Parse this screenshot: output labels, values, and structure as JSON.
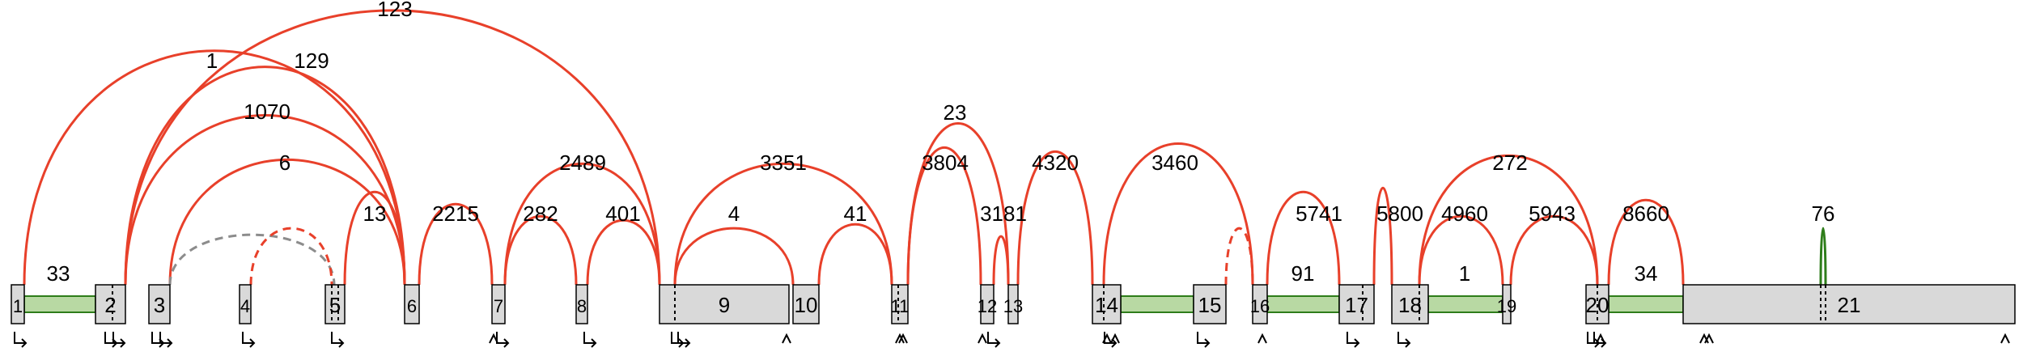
{
  "exons": [
    {
      "id": "1",
      "label": "1"
    },
    {
      "id": "2",
      "label": "2"
    },
    {
      "id": "3",
      "label": "3"
    },
    {
      "id": "4",
      "label": "4"
    },
    {
      "id": "5",
      "label": "5"
    },
    {
      "id": "6",
      "label": "6"
    },
    {
      "id": "7",
      "label": "7"
    },
    {
      "id": "8",
      "label": "8"
    },
    {
      "id": "9",
      "label": "9"
    },
    {
      "id": "10",
      "label": "10"
    },
    {
      "id": "11",
      "label": "11"
    },
    {
      "id": "12",
      "label": "12"
    },
    {
      "id": "13",
      "label": "13"
    },
    {
      "id": "14",
      "label": "14"
    },
    {
      "id": "15",
      "label": "15"
    },
    {
      "id": "16",
      "label": "16"
    },
    {
      "id": "17",
      "label": "17"
    },
    {
      "id": "18",
      "label": "18"
    },
    {
      "id": "19",
      "label": "19"
    },
    {
      "id": "20",
      "label": "20"
    },
    {
      "id": "21",
      "label": "21"
    }
  ],
  "junctions": [
    {
      "from": "1",
      "to": "6",
      "count": "1",
      "style": "solid"
    },
    {
      "from": "2",
      "to": "6",
      "count": "129",
      "style": "solid"
    },
    {
      "from": "2",
      "to": "9",
      "count": "123",
      "style": "solid"
    },
    {
      "from": "2",
      "to": "6",
      "count": "1070",
      "style": "solid"
    },
    {
      "from": "3",
      "to": "6",
      "count": "6",
      "style": "solid"
    },
    {
      "from": "3",
      "to": "5",
      "count": "",
      "style": "grey-dashed"
    },
    {
      "from": "4",
      "to": "5",
      "count": "",
      "style": "dashed"
    },
    {
      "from": "5",
      "to": "6",
      "count": "13",
      "style": "solid"
    },
    {
      "from": "6",
      "to": "7",
      "count": "2215",
      "style": "solid"
    },
    {
      "from": "7",
      "to": "8",
      "count": "282",
      "style": "solid"
    },
    {
      "from": "7",
      "to": "9",
      "count": "2489",
      "style": "solid"
    },
    {
      "from": "8",
      "to": "9",
      "count": "401",
      "style": "solid"
    },
    {
      "from": "9",
      "to": "10",
      "count": "4",
      "style": "solid"
    },
    {
      "from": "9",
      "to": "11",
      "count": "3351",
      "style": "solid"
    },
    {
      "from": "10",
      "to": "11",
      "count": "41",
      "style": "solid"
    },
    {
      "from": "11",
      "to": "13",
      "count": "23",
      "style": "solid"
    },
    {
      "from": "11",
      "to": "12",
      "count": "3804",
      "style": "solid"
    },
    {
      "from": "12",
      "to": "13",
      "count": "3181",
      "style": "solid"
    },
    {
      "from": "13",
      "to": "14",
      "count": "4320",
      "style": "solid"
    },
    {
      "from": "14",
      "to": "16",
      "count": "3460",
      "style": "solid"
    },
    {
      "from": "15",
      "to": "16",
      "count": "",
      "style": "dashed"
    },
    {
      "from": "16",
      "to": "17",
      "count": "5741",
      "style": "solid"
    },
    {
      "from": "17",
      "to": "18",
      "count": "5800",
      "style": "solid"
    },
    {
      "from": "18",
      "to": "19",
      "count": "4960",
      "style": "solid"
    },
    {
      "from": "18",
      "to": "20",
      "count": "272",
      "style": "solid"
    },
    {
      "from": "19",
      "to": "20",
      "count": "5943",
      "style": "solid"
    },
    {
      "from": "20",
      "to": "21",
      "count": "8660",
      "style": "solid"
    },
    {
      "from": "21",
      "to": "21",
      "count": "76",
      "style": "green"
    }
  ],
  "intron_retentions": [
    {
      "between": "1-2",
      "count": "33"
    },
    {
      "between": "14-15",
      "count": ""
    },
    {
      "between": "16-17",
      "count": "91"
    },
    {
      "between": "18-19",
      "count": "1"
    },
    {
      "between": "20-21",
      "count": "34"
    }
  ]
}
